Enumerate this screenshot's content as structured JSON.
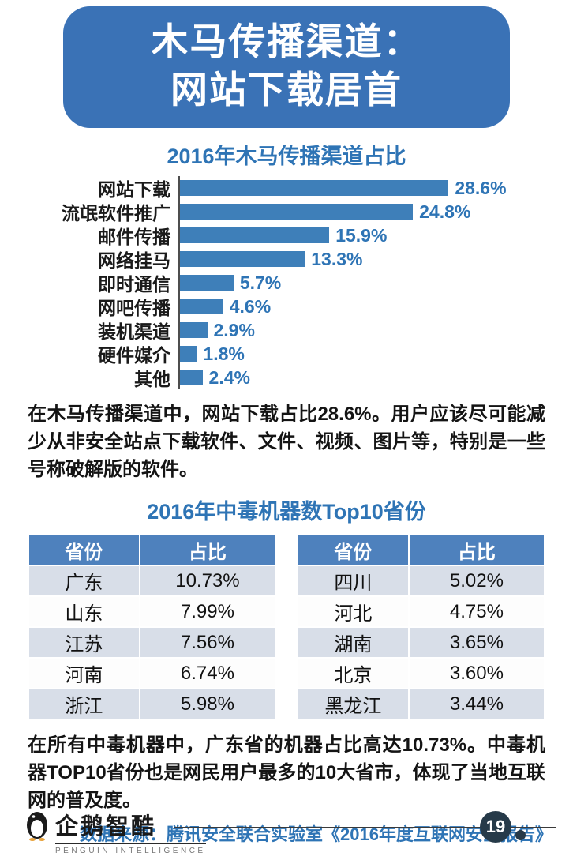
{
  "banner": {
    "title_line1": "木马传播渠道：",
    "title_line2": "网站下载居首"
  },
  "chart_data": [
    {
      "type": "bar",
      "orientation": "horizontal",
      "title": "2016年木马传播渠道占比",
      "categories": [
        "网站下载",
        "流氓软件推广",
        "邮件传播",
        "网络挂马",
        "即时通信",
        "网吧传播",
        "装机渠道",
        "硬件媒介",
        "其他"
      ],
      "values": [
        28.6,
        24.8,
        15.9,
        13.3,
        5.7,
        4.6,
        2.9,
        1.8,
        2.4
      ],
      "value_labels": [
        "28.6%",
        "24.8%",
        "15.9%",
        "13.3%",
        "5.7%",
        "4.6%",
        "2.9%",
        "1.8%",
        "2.4%"
      ],
      "xlim": [
        0,
        30
      ],
      "grid": false,
      "legend": false,
      "bar_color": "#3E7FB9",
      "value_color": "#2E74B5"
    },
    {
      "type": "table",
      "title": "2016年中毒机器数Top10省份",
      "columns": [
        "省份",
        "占比"
      ],
      "tables": [
        {
          "rows": [
            [
              "广东",
              "10.73%"
            ],
            [
              "山东",
              "7.99%"
            ],
            [
              "江苏",
              "7.56%"
            ],
            [
              "河南",
              "6.74%"
            ],
            [
              "浙江",
              "5.98%"
            ]
          ]
        },
        {
          "rows": [
            [
              "四川",
              "5.02%"
            ],
            [
              "河北",
              "4.75%"
            ],
            [
              "湖南",
              "3.65%"
            ],
            [
              "北京",
              "3.60%"
            ],
            [
              "黑龙江",
              "3.44%"
            ]
          ]
        }
      ],
      "header_bg": "#4E81BD",
      "row_alt_bg": "#D8DEE8",
      "row_bg": "#FDFDFD"
    }
  ],
  "paragraphs": {
    "p1": "在木马传播渠道中，网站下载占比28.6%。用户应该尽可能减少从非安全站点下载软件、文件、视频、图片等，特别是一些号称破解版的软件。",
    "p2": "在所有中毒机器中，广东省的机器占比高达10.73%。中毒机器TOP10省份也是网民用户最多的10大省市，体现了当地互联网的普及度。"
  },
  "source": "数据来源：腾讯安全联合实验室《2016年度互联网安全报告》",
  "footer": {
    "logo_text": "企鹅智酷",
    "logo_subtext": "PENGUIN INTELLIGENCE",
    "page_number": "19"
  }
}
